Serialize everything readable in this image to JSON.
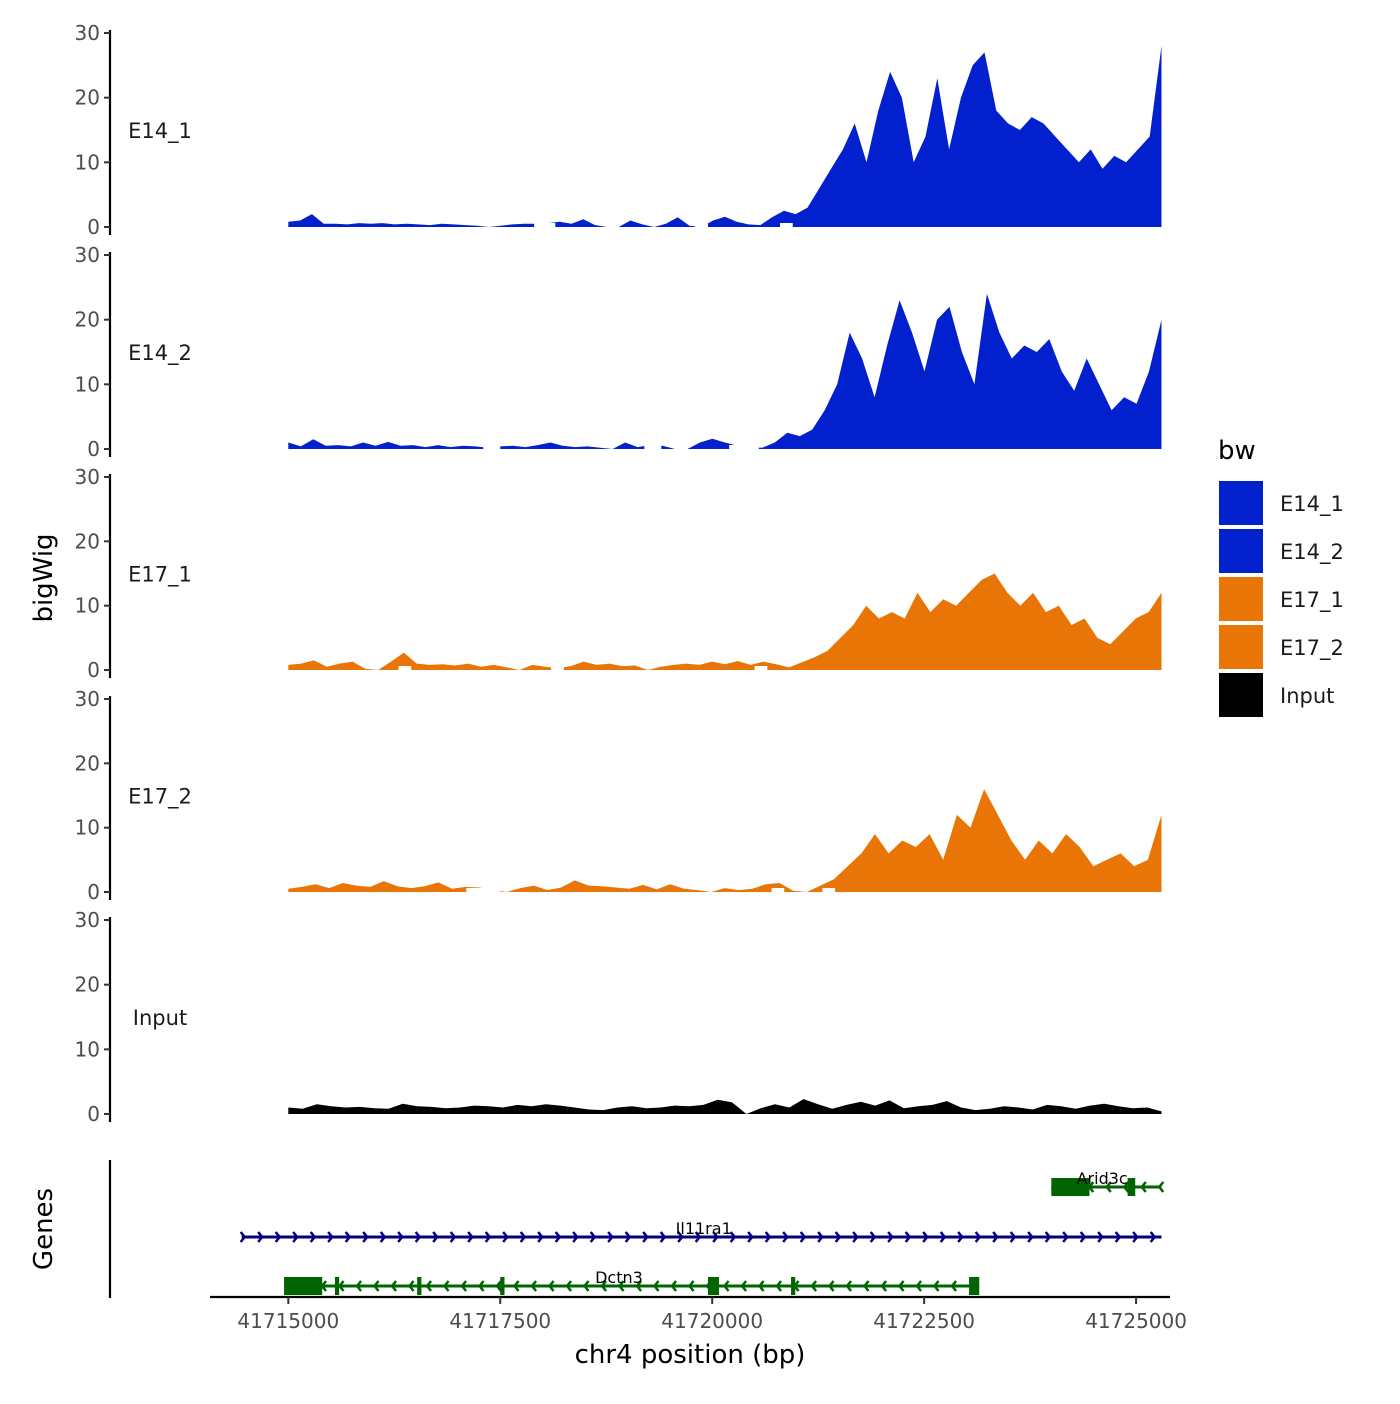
{
  "chart_data": {
    "type": "area",
    "title": "",
    "ylabel": "bigWig",
    "xlabel": "chr4 position (bp)",
    "genes_label": "Genes",
    "xlim": [
      41714100,
      41725400
    ],
    "data_range": [
      41715000,
      41725300
    ],
    "x_ticks": [
      41715000,
      41717500,
      41720000,
      41722500,
      41725000
    ],
    "x_tick_labels": [
      "41715000",
      "41717500",
      "41720000",
      "41722500",
      "41725000"
    ],
    "ylim": [
      0,
      30
    ],
    "y_ticks": [
      0,
      10,
      20,
      30
    ],
    "y_tick_labels": [
      "0",
      "10",
      "20",
      "30"
    ],
    "legend": {
      "title": "bw",
      "position": "right",
      "entries": [
        {
          "label": "E14_1",
          "color": "#0320CF"
        },
        {
          "label": "E14_2",
          "color": "#0320CF"
        },
        {
          "label": "E17_1",
          "color": "#E97506"
        },
        {
          "label": "E17_2",
          "color": "#E97506"
        },
        {
          "label": "Input",
          "color": "#000000"
        }
      ]
    },
    "series": [
      {
        "name": "E14_1",
        "color": "#0320CF",
        "values": [
          0.8,
          1,
          2,
          0.5,
          0.5,
          0.4,
          0.6,
          0.5,
          0.6,
          0.4,
          0.5,
          0.4,
          0.3,
          0.5,
          0.4,
          0.3,
          0.2,
          0,
          0.2,
          0.4,
          0.5,
          0.5,
          0.6,
          0.8,
          0.5,
          1.2,
          0.3,
          0,
          0,
          1,
          0.4,
          0,
          0.5,
          1.5,
          0.2,
          0,
          1,
          1.6,
          0.8,
          0.4,
          0.3,
          1.5,
          2.5,
          2,
          3,
          6,
          9,
          12,
          16,
          10,
          18,
          24,
          20,
          10,
          14,
          23,
          12,
          20,
          25,
          27,
          18,
          16,
          15,
          17,
          16,
          14,
          12,
          10,
          12,
          9,
          11,
          10,
          12,
          14,
          28
        ],
        "gaps": [
          [
            41717900,
            41718150
          ],
          [
            41719800,
            41719950
          ],
          [
            41720800,
            41720950
          ]
        ]
      },
      {
        "name": "E14_2",
        "color": "#0320CF",
        "values": [
          1,
          0.4,
          1.5,
          0.5,
          0.6,
          0.4,
          1,
          0.5,
          1.1,
          0.5,
          0.6,
          0.3,
          0.6,
          0.3,
          0.5,
          0.4,
          0.2,
          0.4,
          0.5,
          0.3,
          0.6,
          1,
          0.5,
          0.3,
          0.4,
          0.2,
          0,
          1,
          0.3,
          0.6,
          0.5,
          0,
          0,
          1,
          1.6,
          1,
          0.5,
          0.3,
          0.2,
          1,
          2.5,
          2,
          3,
          6,
          10,
          18,
          14,
          8,
          16,
          23,
          18,
          12,
          20,
          22,
          15,
          10,
          24,
          18,
          14,
          16,
          15,
          17,
          12,
          9,
          14,
          10,
          6,
          8,
          7,
          12,
          20
        ],
        "gaps": [
          [
            41717300,
            41717500
          ],
          [
            41719200,
            41719400
          ],
          [
            41720200,
            41720550
          ]
        ]
      },
      {
        "name": "E17_1",
        "color": "#E97506",
        "values": [
          0.8,
          1,
          1.5,
          0.5,
          1,
          1.3,
          0.2,
          0,
          1.3,
          2.7,
          1,
          0.8,
          0.9,
          0.7,
          1,
          0.5,
          0.8,
          0.4,
          0,
          0.8,
          0.5,
          0.3,
          0.6,
          1.3,
          0.8,
          1,
          0.6,
          0.7,
          0,
          0.5,
          0.8,
          1,
          0.8,
          1.3,
          0.9,
          1.4,
          0.8,
          1.3,
          0.9,
          0.4,
          1.2,
          2,
          3,
          5,
          7,
          10,
          8,
          9,
          8,
          12,
          9,
          11,
          10,
          12,
          14,
          15,
          12,
          10,
          12,
          9,
          10,
          7,
          8,
          5,
          4,
          6,
          8,
          9,
          12
        ],
        "gaps": [
          [
            41716300,
            41716450
          ],
          [
            41718100,
            41718250
          ],
          [
            41720500,
            41720650
          ]
        ]
      },
      {
        "name": "E17_2",
        "color": "#E97506",
        "values": [
          0.5,
          0.8,
          1.2,
          0.6,
          1.4,
          1,
          0.8,
          1.7,
          0.9,
          0.6,
          0.9,
          1.5,
          0.5,
          0.8,
          0.7,
          0.3,
          0,
          0.6,
          1,
          0.3,
          0.7,
          1.8,
          1,
          0.9,
          0.7,
          0.5,
          1.1,
          0.4,
          1.2,
          0.5,
          0.3,
          0,
          0.6,
          0.3,
          0.5,
          1.2,
          1.4,
          0.2,
          0,
          1,
          2,
          4,
          6,
          9,
          6,
          8,
          7,
          9,
          5,
          12,
          10,
          16,
          12,
          8,
          5,
          8,
          6,
          9,
          7,
          4,
          5,
          6,
          4,
          5,
          12
        ],
        "gaps": [
          [
            41717100,
            41717500
          ],
          [
            41720700,
            41720850
          ],
          [
            41721300,
            41721450
          ]
        ]
      },
      {
        "name": "Input",
        "color": "#000000",
        "values": [
          1,
          0.8,
          1.5,
          1.2,
          1,
          1.1,
          0.9,
          0.8,
          1.6,
          1.2,
          1.1,
          0.9,
          1,
          1.3,
          1.2,
          1,
          1.4,
          1.2,
          1.5,
          1.3,
          1,
          0.7,
          0.6,
          1,
          1.2,
          0.9,
          1,
          1.3,
          1.2,
          1.4,
          2.2,
          1.8,
          0,
          0.9,
          1.5,
          1,
          2.3,
          1.5,
          0.8,
          1.4,
          1.9,
          1.3,
          2.1,
          0.9,
          1.2,
          1.4,
          2,
          1,
          0.6,
          0.8,
          1.2,
          1,
          0.7,
          1.4,
          1.2,
          0.8,
          1.3,
          1.6,
          1.2,
          0.9,
          1,
          0.4
        ],
        "gaps": []
      }
    ],
    "genes": [
      {
        "name": "Arid3c",
        "strand": "-",
        "color": "#006400",
        "start": 41724000,
        "end": 41725300,
        "exons": [
          [
            41724000,
            41724450
          ],
          [
            41724900,
            41724990
          ]
        ],
        "label_pos": 41724600
      },
      {
        "name": "Il11ra1",
        "strand": "+",
        "color": "#000080",
        "start": 41714450,
        "end": 41725300,
        "exons": [],
        "label_pos": 41719900
      },
      {
        "name": "Dctn3",
        "strand": "-",
        "color": "#006400",
        "start": 41714950,
        "end": 41723150,
        "exons": [
          [
            41714950,
            41715400
          ],
          [
            41715550,
            41715600
          ],
          [
            41716520,
            41716570
          ],
          [
            41717500,
            41717550
          ],
          [
            41719950,
            41720080
          ],
          [
            41720930,
            41720980
          ],
          [
            41723030,
            41723150
          ]
        ],
        "label_pos": 41718900
      }
    ]
  }
}
